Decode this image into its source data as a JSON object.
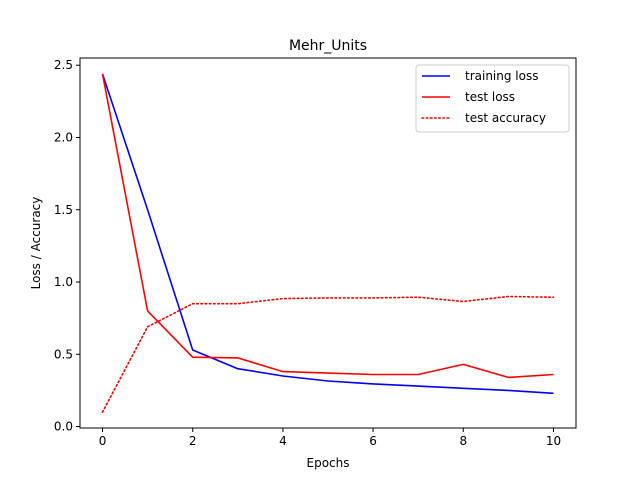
{
  "chart_data": {
    "type": "line",
    "title": "Mehr_Units",
    "xlabel": "Epochs",
    "ylabel": "Loss / Accuracy",
    "xlim": [
      -0.5,
      10.5
    ],
    "ylim": [
      -0.01,
      2.55
    ],
    "x_ticks": [
      0,
      2,
      4,
      6,
      8,
      10
    ],
    "y_ticks": [
      0.0,
      0.5,
      1.0,
      1.5,
      2.0,
      2.5
    ],
    "y_tick_labels": [
      "0.0",
      "0.5",
      "1.0",
      "1.5",
      "2.0",
      "2.5"
    ],
    "grid": false,
    "legend_position": "top-right",
    "x": [
      0,
      1,
      2,
      3,
      4,
      5,
      6,
      7,
      8,
      9,
      10
    ],
    "series": [
      {
        "name": "training loss",
        "color": "#0000ff",
        "style": "solid",
        "values": [
          2.44,
          1.5,
          0.53,
          0.4,
          0.35,
          0.315,
          0.295,
          0.28,
          0.265,
          0.25,
          0.23
        ]
      },
      {
        "name": "test loss",
        "color": "#ff0000",
        "style": "solid",
        "values": [
          2.44,
          0.8,
          0.48,
          0.475,
          0.38,
          0.37,
          0.36,
          0.36,
          0.43,
          0.34,
          0.36
        ]
      },
      {
        "name": "test accuracy",
        "color": "#ff0000",
        "style": "dotted",
        "values": [
          0.1,
          0.69,
          0.85,
          0.85,
          0.885,
          0.89,
          0.89,
          0.895,
          0.865,
          0.9,
          0.895
        ]
      }
    ]
  }
}
